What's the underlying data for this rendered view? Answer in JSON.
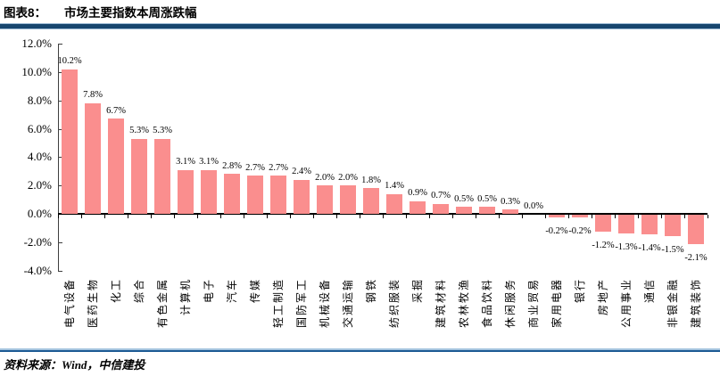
{
  "header": {
    "tag": "图表8：",
    "title": "市场主要指数本周涨跌幅"
  },
  "footer": {
    "source": "资料来源：Wind，中信建投"
  },
  "colors": {
    "bar": "#fa8e8e",
    "axis": "#000000",
    "y_axis_line": "#3f3f3f",
    "rule_dark": "#17466f",
    "rule_light": "#9dbbd6"
  },
  "chart_data": {
    "type": "bar",
    "title": "市场主要指数本周涨跌幅",
    "xlabel": "",
    "ylabel": "",
    "grid": false,
    "legend": "none",
    "ylim": [
      -4,
      12
    ],
    "y_axis": {
      "values": [
        12,
        10,
        8,
        6,
        4,
        2,
        0,
        -2,
        -4
      ],
      "labels": [
        "12.0%",
        "10.0%",
        "8.0%",
        "6.0%",
        "4.0%",
        "2.0%",
        "0.0%",
        "-2.0%",
        "-4.0%"
      ]
    },
    "categories": [
      "电气设备",
      "医药生物",
      "化工",
      "综合",
      "有色金属",
      "计算机",
      "电子",
      "汽车",
      "传媒",
      "轻工制造",
      "国防军工",
      "机械设备",
      "交通运输",
      "钢铁",
      "纺织服装",
      "采掘",
      "建筑材料",
      "农林牧渔",
      "食品饮料",
      "休闲服务",
      "商业贸易",
      "家用电器",
      "银行",
      "房地产",
      "公用事业",
      "通信",
      "非银金融",
      "建筑装饰"
    ],
    "values": [
      10.2,
      7.8,
      6.7,
      5.3,
      5.3,
      3.1,
      3.1,
      2.8,
      2.7,
      2.7,
      2.4,
      2.0,
      2.0,
      1.8,
      1.4,
      0.9,
      0.7,
      0.5,
      0.5,
      0.3,
      0.0,
      -0.2,
      -0.2,
      -1.2,
      -1.3,
      -1.4,
      -1.5,
      -2.1
    ],
    "value_labels": [
      "10.2%",
      "7.8%",
      "6.7%",
      "5.3%",
      "5.3%",
      "3.1%",
      "3.1%",
      "2.8%",
      "2.7%",
      "2.7%",
      "2.4%",
      "2.0%",
      "2.0%",
      "1.8%",
      "1.4%",
      "0.9%",
      "0.7%",
      "0.5%",
      "0.5%",
      "0.3%",
      "0.0%",
      "-0.2%",
      "-0.2%",
      "-1.2%",
      "-1.3%",
      "-1.4%",
      "-1.5%",
      "-2.1%"
    ]
  }
}
